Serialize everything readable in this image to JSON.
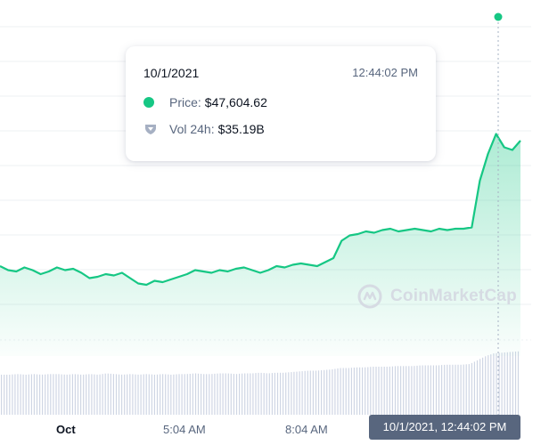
{
  "tooltip": {
    "date": "10/1/2021",
    "time": "12:44:02 PM",
    "price_label": "Price:",
    "price_value": "$47,604.62",
    "volume_label": "Vol 24h:",
    "volume_value": "$35.19B",
    "price_icon": "green-dot-icon",
    "volume_icon": "shield-icon"
  },
  "watermark": {
    "text": "CoinMarketCap",
    "icon": "coinmarketcap-logo-icon"
  },
  "x_axis": {
    "ticks": [
      "Oct",
      "5:04 AM",
      "8:04 AM"
    ],
    "hover_label": "10/1/2021, 12:44:02 PM"
  },
  "colors": {
    "line": "#16c784",
    "volume": "#cfd6e4",
    "grid": "#eef0f3",
    "crosshair": "#a6b0c3"
  },
  "chart_data": {
    "type": "area",
    "title": "",
    "xlabel": "",
    "ylabel": "",
    "x_ticks": [
      "Oct",
      "5:04 AM",
      "8:04 AM"
    ],
    "grid": true,
    "legend": "none",
    "hover": {
      "date": "10/1/2021",
      "time": "12:44:02 PM",
      "price": 47604.62,
      "volume_24h": "35.19B"
    },
    "series": [
      {
        "relative_level": [
          0.56,
          0.53,
          0.52,
          0.55,
          0.53,
          0.5,
          0.52,
          0.55,
          0.53,
          0.54,
          0.51,
          0.47,
          0.48,
          0.5,
          0.49,
          0.51,
          0.47,
          0.43,
          0.42,
          0.45,
          0.44,
          0.46,
          0.48,
          0.5,
          0.53,
          0.52,
          0.51,
          0.53,
          0.52,
          0.54,
          0.55,
          0.53,
          0.51,
          0.53,
          0.56,
          0.55,
          0.57,
          0.58,
          0.57,
          0.56,
          0.59,
          0.62,
          0.75,
          0.79,
          0.8,
          0.82,
          0.81,
          0.83,
          0.84,
          0.82,
          0.83,
          0.84,
          0.83,
          0.82,
          0.84,
          0.83,
          0.84,
          0.84,
          0.85,
          1.2,
          1.4,
          1.55,
          1.45,
          1.43,
          1.5
        ],
        "volume_relative": [
          0.6,
          0.6,
          0.61,
          0.6,
          0.61,
          0.6,
          0.61,
          0.61,
          0.6,
          0.61,
          0.6,
          0.61,
          0.6,
          0.62,
          0.61,
          0.6,
          0.61,
          0.6,
          0.61,
          0.6,
          0.61,
          0.6,
          0.61,
          0.61,
          0.62,
          0.61,
          0.61,
          0.62,
          0.62,
          0.61,
          0.62,
          0.62,
          0.63,
          0.62,
          0.63,
          0.63,
          0.64,
          0.65,
          0.66,
          0.66,
          0.67,
          0.68,
          0.7,
          0.7,
          0.71,
          0.71,
          0.72,
          0.72,
          0.72,
          0.73,
          0.73,
          0.73,
          0.74,
          0.74,
          0.74,
          0.75,
          0.75,
          0.75,
          0.76,
          0.82,
          0.88,
          0.92,
          0.93,
          0.94,
          0.95
        ]
      }
    ]
  }
}
